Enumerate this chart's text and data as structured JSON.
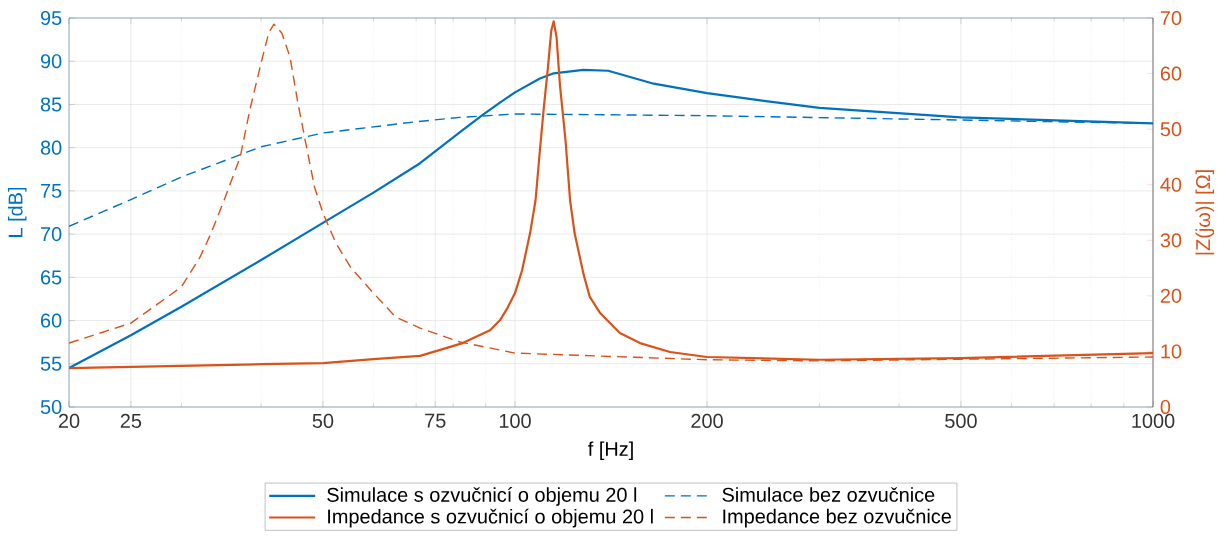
{
  "chart_data": {
    "type": "line",
    "xlabel": "f [Hz]",
    "ylabel": "L [dB]",
    "y2label": "|Z(jω)| [Ω]",
    "log": "x",
    "grid": true,
    "legend": "bottom",
    "xlim": [
      20,
      1000
    ],
    "ylim": [
      50,
      95
    ],
    "y2lim": [
      0,
      70
    ],
    "xticks": [
      20,
      25,
      {
        "value": 30,
        "label": null
      },
      {
        "value": 40,
        "label": null
      },
      50,
      {
        "value": 60,
        "label": null
      },
      {
        "value": 70,
        "label": null
      },
      75,
      {
        "value": 80,
        "label": null
      },
      {
        "value": 90,
        "label": null
      },
      100,
      200,
      {
        "value": 300,
        "label": null
      },
      {
        "value": 400,
        "label": null
      },
      500,
      {
        "value": 600,
        "label": null
      },
      {
        "value": 700,
        "label": null
      },
      {
        "value": 800,
        "label": null
      },
      {
        "value": 900,
        "label": null
      },
      1000
    ],
    "yticks": [
      50,
      55,
      60,
      65,
      70,
      75,
      80,
      85,
      90,
      95
    ],
    "y2ticks": [
      0,
      10,
      20,
      30,
      40,
      50,
      60,
      70
    ],
    "series": [
      {
        "name": "Simulace s ozvučnicí o objemu 20 l",
        "color": "#0072bd",
        "line_style": "solid",
        "x": [
          20,
          25,
          30,
          40,
          50,
          60,
          71,
          82,
          89,
          94.7,
          100,
          109.4,
          115,
          128,
          140,
          165,
          200,
          241,
          300,
          500,
          1000
        ],
        "values": [
          54.5,
          58.3,
          61.6,
          67,
          71.3,
          74.8,
          78.2,
          81.8,
          83.8,
          85.2,
          86.4,
          88.0,
          88.6,
          89.0,
          88.9,
          87.4,
          86.3,
          85.5,
          84.6,
          83.5,
          82.8
        ]
      },
      {
        "name": "Simulace bez ozvučnice",
        "color": "#0072bd",
        "line_style": "dashed",
        "x": [
          20,
          25,
          30,
          40,
          50,
          70,
          82,
          100,
          200,
          500,
          1000
        ],
        "values": [
          70.9,
          74.0,
          76.6,
          80.1,
          81.7,
          83.0,
          83.5,
          83.9,
          83.7,
          83.2,
          82.8
        ]
      },
      {
        "name": "Impedance s ozvučnicí o objemu 20 l",
        "color": "#d95319",
        "line_style": "solid",
        "axis": "y2",
        "x": [
          20,
          40,
          50,
          60,
          71,
          82.8,
          91.4,
          94.7,
          97.3,
          100,
          102.6,
          105.6,
          107.7,
          109.4,
          111,
          112.6,
          114,
          115,
          116.2,
          117.6,
          120,
          122,
          124,
          128,
          131,
          136,
          146,
          157,
          175,
          200,
          300,
          500,
          1000
        ],
        "values": [
          7.0,
          7.7,
          7.9,
          8.6,
          9.2,
          11.5,
          13.8,
          15.6,
          17.8,
          20.5,
          24.6,
          31.3,
          37.2,
          46.2,
          54,
          61,
          67.8,
          69.4,
          66.5,
          58,
          48,
          37.2,
          31.3,
          24,
          19.8,
          16.9,
          13.3,
          11.5,
          9.9,
          9.0,
          8.5,
          8.8,
          9.7
        ]
      },
      {
        "name": "Impedance bez ozvučnice",
        "color": "#d95319",
        "line_style": "dashed",
        "axis": "y2",
        "x": [
          20,
          25,
          30,
          32.1,
          33.4,
          35,
          37.1,
          38.4,
          40,
          41.1,
          41.9,
          43.1,
          44.4,
          45.6,
          46.9,
          48.5,
          50,
          52.4,
          55.2,
          60,
          65,
          71,
          82,
          100,
          200,
          300,
          1000
        ],
        "values": [
          11.5,
          15.1,
          21.6,
          27,
          31.3,
          37.2,
          45,
          53.4,
          61.9,
          67.3,
          68.9,
          67.3,
          63,
          55.2,
          48,
          39.6,
          34.9,
          29.5,
          25.2,
          20.5,
          16.2,
          14.2,
          11.7,
          9.7,
          8.5,
          8.3,
          9
        ]
      }
    ]
  }
}
